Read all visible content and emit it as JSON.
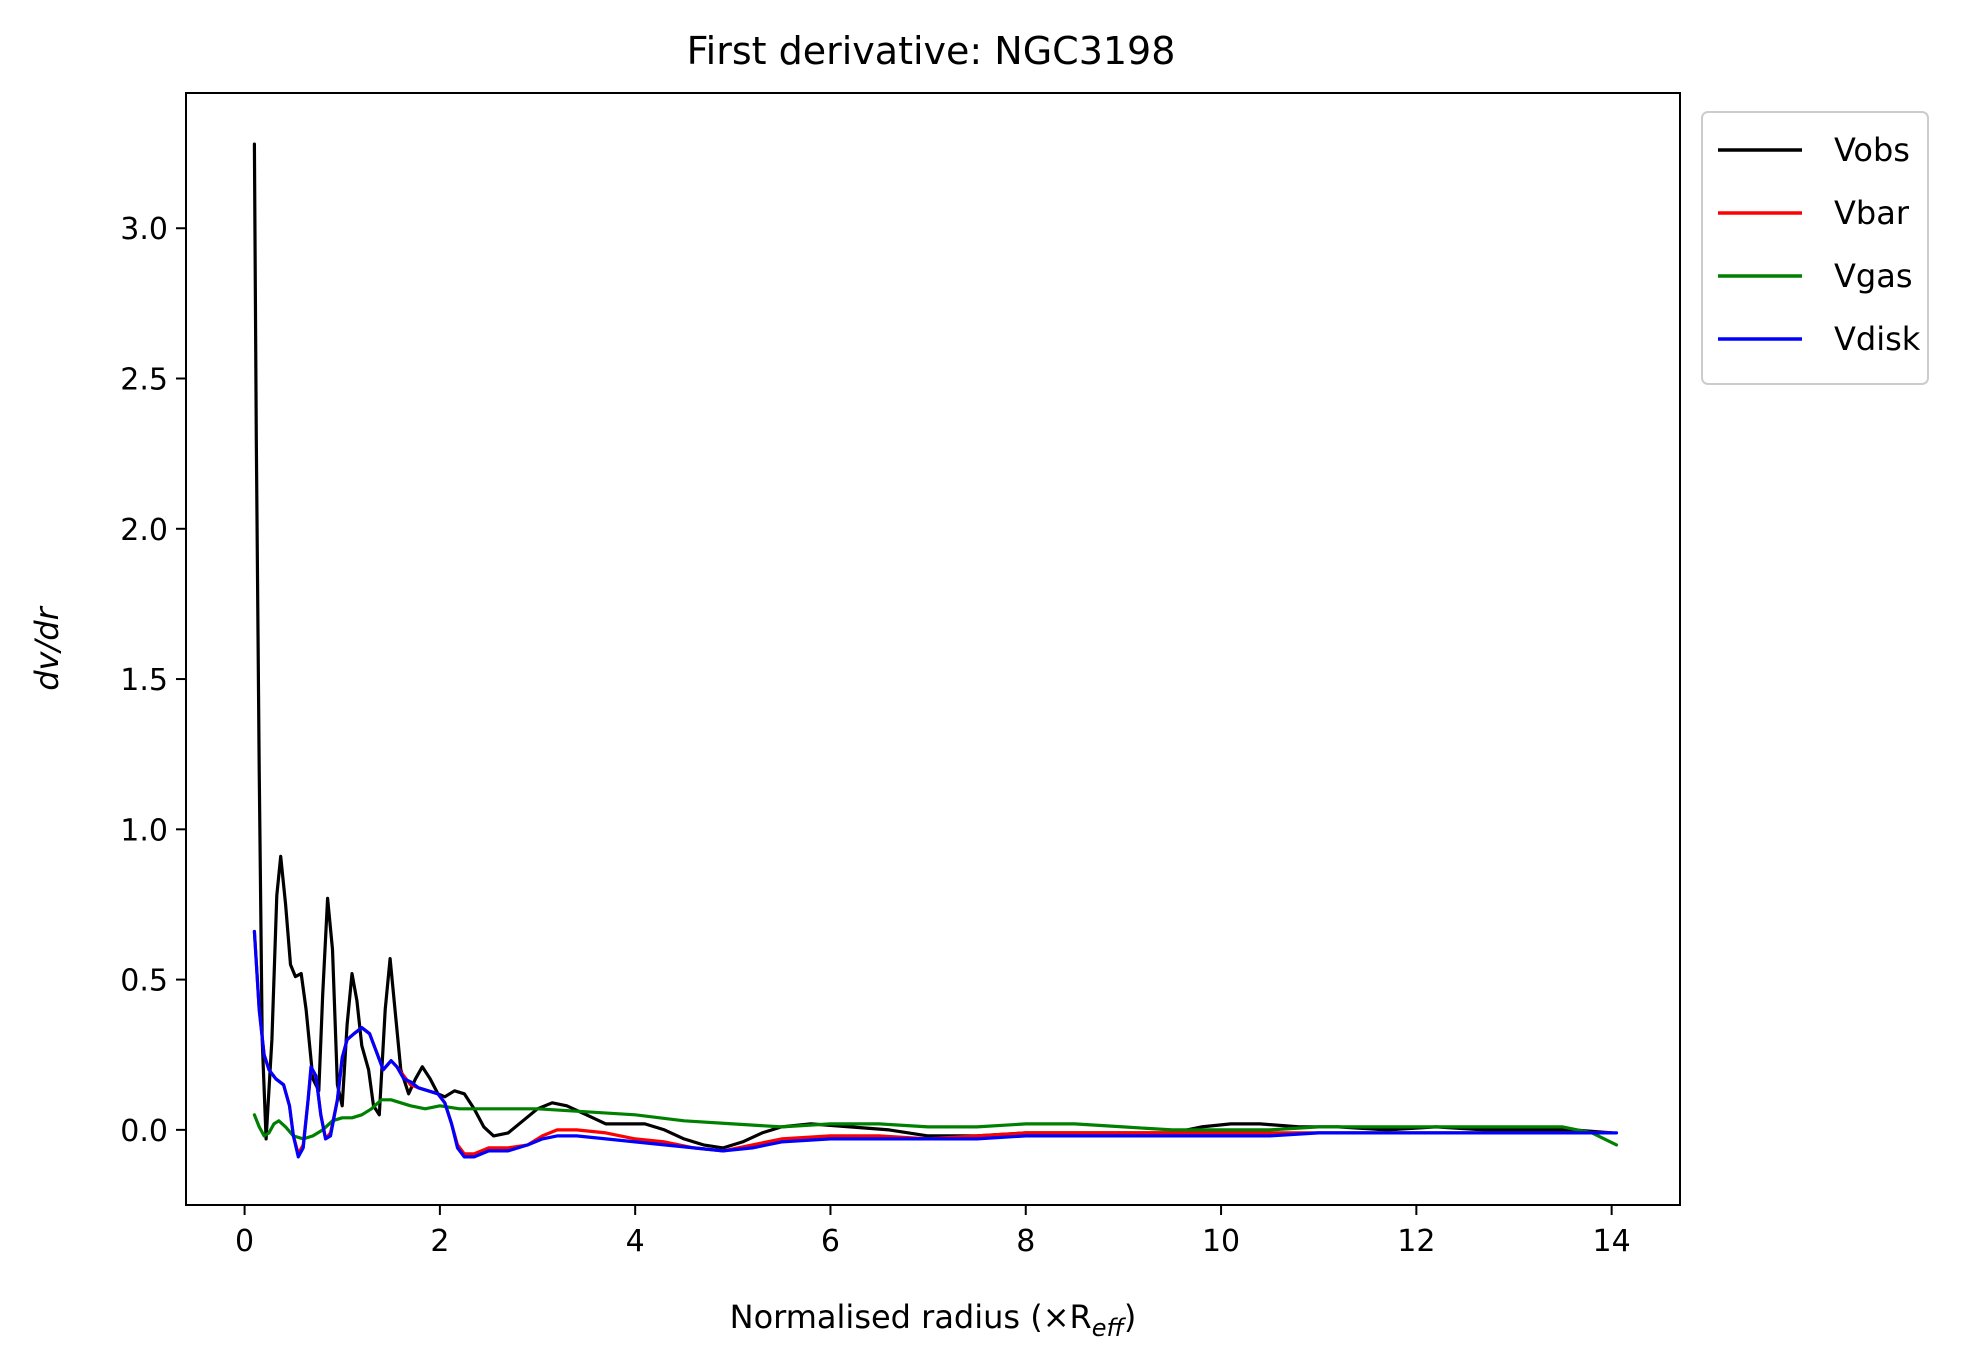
{
  "chart_data": {
    "type": "line",
    "title": "First derivative: NGC3198",
    "xlabel": "Normalised radius (×R",
    "xlabel_sub": "eff",
    "xlabel_close": ")",
    "ylabel": "dv/dr",
    "xlim": [
      -0.6,
      14.7
    ],
    "ylim": [
      -0.25,
      3.45
    ],
    "xticks": [
      0,
      2,
      4,
      6,
      8,
      10,
      12,
      14
    ],
    "xtick_labels": [
      "0",
      "2",
      "4",
      "6",
      "8",
      "10",
      "12",
      "14"
    ],
    "yticks": [
      0.0,
      0.5,
      1.0,
      1.5,
      2.0,
      2.5,
      3.0
    ],
    "ytick_labels": [
      "0.0",
      "0.5",
      "1.0",
      "1.5",
      "2.0",
      "2.5",
      "3.0"
    ],
    "grid": false,
    "legend_position": "outside-top-right",
    "series": [
      {
        "name": "Vobs",
        "color": "#000000",
        "points": [
          [
            0.1,
            3.28
          ],
          [
            0.12,
            2.3
          ],
          [
            0.15,
            1.2
          ],
          [
            0.18,
            0.3
          ],
          [
            0.22,
            -0.03
          ],
          [
            0.28,
            0.3
          ],
          [
            0.33,
            0.78
          ],
          [
            0.37,
            0.91
          ],
          [
            0.42,
            0.75
          ],
          [
            0.47,
            0.55
          ],
          [
            0.52,
            0.51
          ],
          [
            0.58,
            0.52
          ],
          [
            0.63,
            0.4
          ],
          [
            0.7,
            0.17
          ],
          [
            0.76,
            0.13
          ],
          [
            0.8,
            0.45
          ],
          [
            0.85,
            0.77
          ],
          [
            0.9,
            0.6
          ],
          [
            0.95,
            0.15
          ],
          [
            1.0,
            0.08
          ],
          [
            1.05,
            0.35
          ],
          [
            1.1,
            0.52
          ],
          [
            1.15,
            0.43
          ],
          [
            1.2,
            0.28
          ],
          [
            1.27,
            0.2
          ],
          [
            1.32,
            0.08
          ],
          [
            1.38,
            0.05
          ],
          [
            1.44,
            0.4
          ],
          [
            1.49,
            0.57
          ],
          [
            1.54,
            0.4
          ],
          [
            1.6,
            0.2
          ],
          [
            1.68,
            0.12
          ],
          [
            1.75,
            0.17
          ],
          [
            1.82,
            0.21
          ],
          [
            1.9,
            0.17
          ],
          [
            1.98,
            0.12
          ],
          [
            2.05,
            0.11
          ],
          [
            2.15,
            0.13
          ],
          [
            2.25,
            0.12
          ],
          [
            2.35,
            0.07
          ],
          [
            2.45,
            0.01
          ],
          [
            2.55,
            -0.02
          ],
          [
            2.7,
            -0.01
          ],
          [
            2.85,
            0.03
          ],
          [
            3.0,
            0.07
          ],
          [
            3.15,
            0.09
          ],
          [
            3.3,
            0.08
          ],
          [
            3.5,
            0.05
          ],
          [
            3.7,
            0.02
          ],
          [
            3.9,
            0.02
          ],
          [
            4.1,
            0.02
          ],
          [
            4.3,
            0.0
          ],
          [
            4.5,
            -0.03
          ],
          [
            4.7,
            -0.05
          ],
          [
            4.9,
            -0.06
          ],
          [
            5.1,
            -0.04
          ],
          [
            5.3,
            -0.01
          ],
          [
            5.5,
            0.01
          ],
          [
            5.8,
            0.02
          ],
          [
            6.2,
            0.01
          ],
          [
            6.6,
            0.0
          ],
          [
            7.0,
            -0.02
          ],
          [
            7.5,
            -0.02
          ],
          [
            8.0,
            -0.01
          ],
          [
            8.5,
            -0.01
          ],
          [
            9.0,
            -0.01
          ],
          [
            9.5,
            -0.01
          ],
          [
            9.8,
            0.01
          ],
          [
            10.1,
            0.02
          ],
          [
            10.4,
            0.02
          ],
          [
            10.8,
            0.01
          ],
          [
            11.2,
            0.01
          ],
          [
            11.7,
            0.0
          ],
          [
            12.2,
            0.01
          ],
          [
            12.7,
            0.0
          ],
          [
            13.2,
            0.0
          ],
          [
            13.6,
            0.0
          ],
          [
            14.0,
            -0.01
          ]
        ]
      },
      {
        "name": "Vbar",
        "color": "#ff0000",
        "points": [
          [
            0.1,
            0.66
          ],
          [
            0.15,
            0.4
          ],
          [
            0.2,
            0.25
          ],
          [
            0.25,
            0.2
          ],
          [
            0.32,
            0.17
          ],
          [
            0.4,
            0.15
          ],
          [
            0.46,
            0.08
          ],
          [
            0.5,
            -0.02
          ],
          [
            0.55,
            -0.08
          ],
          [
            0.6,
            -0.05
          ],
          [
            0.65,
            0.1
          ],
          [
            0.68,
            0.2
          ],
          [
            0.73,
            0.18
          ],
          [
            0.78,
            0.05
          ],
          [
            0.83,
            -0.03
          ],
          [
            0.88,
            -0.01
          ],
          [
            0.95,
            0.1
          ],
          [
            1.0,
            0.24
          ],
          [
            1.05,
            0.3
          ],
          [
            1.12,
            0.32
          ],
          [
            1.2,
            0.34
          ],
          [
            1.28,
            0.32
          ],
          [
            1.35,
            0.26
          ],
          [
            1.42,
            0.2
          ],
          [
            1.5,
            0.23
          ],
          [
            1.56,
            0.21
          ],
          [
            1.63,
            0.18
          ],
          [
            1.7,
            0.15
          ],
          [
            1.78,
            0.14
          ],
          [
            1.88,
            0.13
          ],
          [
            1.98,
            0.12
          ],
          [
            2.05,
            0.09
          ],
          [
            2.12,
            0.02
          ],
          [
            2.18,
            -0.05
          ],
          [
            2.25,
            -0.08
          ],
          [
            2.35,
            -0.08
          ],
          [
            2.5,
            -0.06
          ],
          [
            2.7,
            -0.06
          ],
          [
            2.9,
            -0.05
          ],
          [
            3.05,
            -0.02
          ],
          [
            3.2,
            0.0
          ],
          [
            3.4,
            0.0
          ],
          [
            3.7,
            -0.01
          ],
          [
            4.0,
            -0.03
          ],
          [
            4.3,
            -0.04
          ],
          [
            4.6,
            -0.06
          ],
          [
            4.9,
            -0.07
          ],
          [
            5.2,
            -0.05
          ],
          [
            5.5,
            -0.03
          ],
          [
            6.0,
            -0.02
          ],
          [
            6.5,
            -0.02
          ],
          [
            7.0,
            -0.03
          ],
          [
            7.5,
            -0.02
          ],
          [
            8.0,
            -0.01
          ],
          [
            8.5,
            -0.01
          ],
          [
            9.0,
            -0.01
          ],
          [
            9.5,
            -0.01
          ],
          [
            10.0,
            -0.01
          ],
          [
            10.5,
            -0.01
          ],
          [
            11.0,
            -0.01
          ],
          [
            11.5,
            -0.01
          ],
          [
            12.0,
            -0.01
          ],
          [
            12.5,
            -0.01
          ],
          [
            13.0,
            -0.01
          ],
          [
            13.5,
            -0.01
          ],
          [
            14.0,
            -0.01
          ]
        ]
      },
      {
        "name": "Vgas",
        "color": "#008000",
        "points": [
          [
            0.1,
            0.05
          ],
          [
            0.15,
            0.01
          ],
          [
            0.2,
            -0.02
          ],
          [
            0.25,
            -0.01
          ],
          [
            0.3,
            0.02
          ],
          [
            0.35,
            0.03
          ],
          [
            0.42,
            0.01
          ],
          [
            0.5,
            -0.02
          ],
          [
            0.6,
            -0.03
          ],
          [
            0.7,
            -0.02
          ],
          [
            0.8,
            0.0
          ],
          [
            0.9,
            0.03
          ],
          [
            1.0,
            0.04
          ],
          [
            1.1,
            0.04
          ],
          [
            1.2,
            0.05
          ],
          [
            1.3,
            0.07
          ],
          [
            1.4,
            0.1
          ],
          [
            1.5,
            0.1
          ],
          [
            1.6,
            0.09
          ],
          [
            1.7,
            0.08
          ],
          [
            1.85,
            0.07
          ],
          [
            2.0,
            0.08
          ],
          [
            2.2,
            0.07
          ],
          [
            2.4,
            0.07
          ],
          [
            2.6,
            0.07
          ],
          [
            3.0,
            0.07
          ],
          [
            3.5,
            0.06
          ],
          [
            4.0,
            0.05
          ],
          [
            4.5,
            0.03
          ],
          [
            5.0,
            0.02
          ],
          [
            5.5,
            0.01
          ],
          [
            6.0,
            0.02
          ],
          [
            6.5,
            0.02
          ],
          [
            7.0,
            0.01
          ],
          [
            7.5,
            0.01
          ],
          [
            8.0,
            0.02
          ],
          [
            8.5,
            0.02
          ],
          [
            9.0,
            0.01
          ],
          [
            9.5,
            0.0
          ],
          [
            10.0,
            0.0
          ],
          [
            10.5,
            0.0
          ],
          [
            11.0,
            0.01
          ],
          [
            11.5,
            0.01
          ],
          [
            12.0,
            0.01
          ],
          [
            12.5,
            0.01
          ],
          [
            13.0,
            0.01
          ],
          [
            13.5,
            0.01
          ],
          [
            13.8,
            -0.01
          ],
          [
            14.05,
            -0.05
          ]
        ]
      },
      {
        "name": "Vdisk",
        "color": "#0000ff",
        "points": [
          [
            0.1,
            0.66
          ],
          [
            0.15,
            0.4
          ],
          [
            0.2,
            0.25
          ],
          [
            0.25,
            0.2
          ],
          [
            0.32,
            0.17
          ],
          [
            0.4,
            0.15
          ],
          [
            0.46,
            0.08
          ],
          [
            0.5,
            -0.02
          ],
          [
            0.55,
            -0.09
          ],
          [
            0.6,
            -0.06
          ],
          [
            0.65,
            0.1
          ],
          [
            0.68,
            0.21
          ],
          [
            0.73,
            0.18
          ],
          [
            0.78,
            0.05
          ],
          [
            0.83,
            -0.03
          ],
          [
            0.88,
            -0.02
          ],
          [
            0.95,
            0.1
          ],
          [
            1.0,
            0.24
          ],
          [
            1.05,
            0.3
          ],
          [
            1.12,
            0.32
          ],
          [
            1.2,
            0.34
          ],
          [
            1.28,
            0.32
          ],
          [
            1.35,
            0.26
          ],
          [
            1.42,
            0.2
          ],
          [
            1.5,
            0.23
          ],
          [
            1.56,
            0.21
          ],
          [
            1.63,
            0.17
          ],
          [
            1.7,
            0.16
          ],
          [
            1.78,
            0.14
          ],
          [
            1.88,
            0.13
          ],
          [
            1.98,
            0.12
          ],
          [
            2.05,
            0.09
          ],
          [
            2.12,
            0.02
          ],
          [
            2.18,
            -0.06
          ],
          [
            2.25,
            -0.09
          ],
          [
            2.35,
            -0.09
          ],
          [
            2.5,
            -0.07
          ],
          [
            2.7,
            -0.07
          ],
          [
            2.9,
            -0.05
          ],
          [
            3.05,
            -0.03
          ],
          [
            3.2,
            -0.02
          ],
          [
            3.4,
            -0.02
          ],
          [
            3.7,
            -0.03
          ],
          [
            4.0,
            -0.04
          ],
          [
            4.3,
            -0.05
          ],
          [
            4.6,
            -0.06
          ],
          [
            4.9,
            -0.07
          ],
          [
            5.2,
            -0.06
          ],
          [
            5.5,
            -0.04
          ],
          [
            6.0,
            -0.03
          ],
          [
            6.5,
            -0.03
          ],
          [
            7.0,
            -0.03
          ],
          [
            7.5,
            -0.03
          ],
          [
            8.0,
            -0.02
          ],
          [
            8.5,
            -0.02
          ],
          [
            9.0,
            -0.02
          ],
          [
            9.5,
            -0.02
          ],
          [
            10.0,
            -0.02
          ],
          [
            10.5,
            -0.02
          ],
          [
            11.0,
            -0.01
          ],
          [
            11.5,
            -0.01
          ],
          [
            12.0,
            -0.01
          ],
          [
            12.5,
            -0.01
          ],
          [
            13.0,
            -0.01
          ],
          [
            13.5,
            -0.01
          ],
          [
            14.05,
            -0.01
          ]
        ]
      }
    ]
  }
}
